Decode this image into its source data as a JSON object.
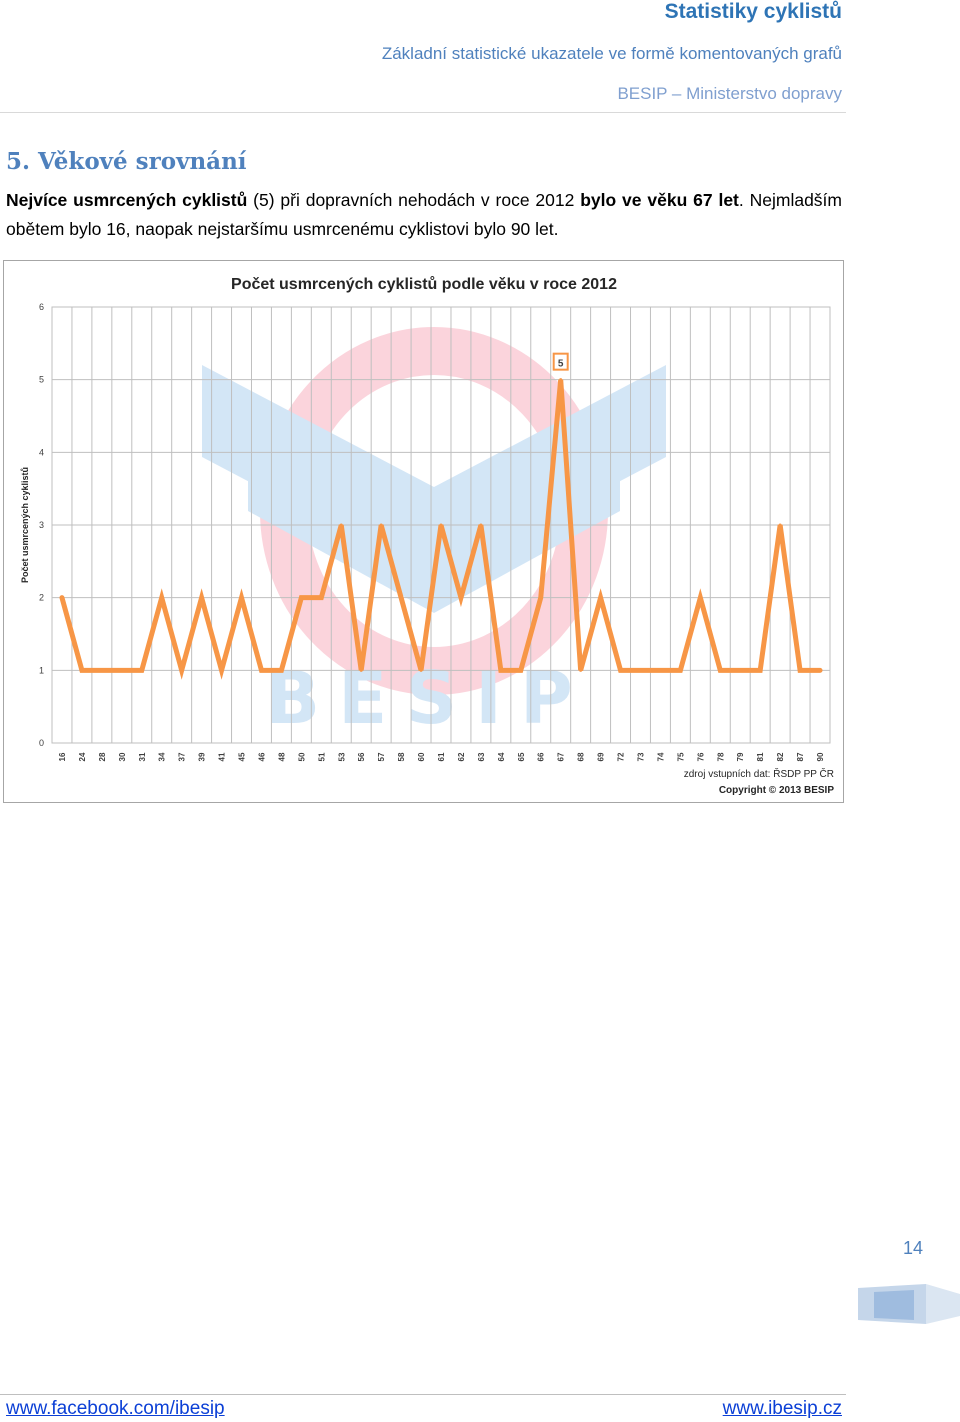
{
  "header": {
    "title": "Statistiky cyklistů",
    "subtitle": "Základní statistické ukazatele ve formě komentovaných grafů",
    "org": "BESIP – Ministerstvo dopravy"
  },
  "section": {
    "title": "5. Věkové srovnání"
  },
  "paragraph": {
    "p1": "Nejvíce usmrcených cyklistů",
    "p2": " (5) při dopravních nehodách v roce 2012 ",
    "p3": "bylo ve věku 67 let",
    "p4": ". Nejmladším obětem bylo 16, naopak nejstaršímu usmrcenému cyklistovi bylo 90 let."
  },
  "chart_data": {
    "type": "line",
    "title": "Počet usmrcených cyklistů podle věku v roce 2012",
    "ylabel": "Počet usmrcených cyklistů",
    "xlabel": "",
    "ylim": [
      0,
      6
    ],
    "yticks": [
      0,
      1,
      2,
      3,
      4,
      5,
      6
    ],
    "grid": true,
    "categories": [
      "16",
      "24",
      "28",
      "30",
      "31",
      "34",
      "37",
      "39",
      "41",
      "45",
      "46",
      "48",
      "50",
      "51",
      "53",
      "56",
      "57",
      "58",
      "60",
      "61",
      "62",
      "63",
      "64",
      "65",
      "66",
      "67",
      "68",
      "69",
      "72",
      "73",
      "74",
      "75",
      "76",
      "78",
      "79",
      "81",
      "82",
      "87",
      "90"
    ],
    "values": [
      2,
      1,
      1,
      1,
      1,
      2,
      1,
      2,
      1,
      2,
      1,
      1,
      2,
      2,
      3,
      1,
      3,
      2,
      1,
      3,
      2,
      3,
      1,
      1,
      2,
      5,
      1,
      2,
      1,
      1,
      1,
      1,
      2,
      1,
      1,
      1,
      3,
      1,
      1
    ],
    "highlight": {
      "category": "67",
      "label": "5"
    },
    "line_color": "#f79646",
    "source": "zdroj vstupních dat: ŘSDP PP ČR",
    "copyright": "Copyright © 2013  BESIP",
    "watermark": "BESIP"
  },
  "page": {
    "number": "14"
  },
  "footer": {
    "left": "www.facebook.com/ibesip",
    "right": "www.ibesip.cz"
  }
}
